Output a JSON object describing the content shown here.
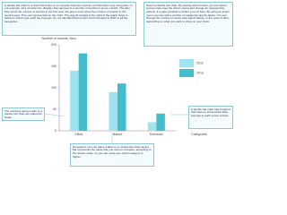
{
  "notes": {
    "intro": "A double bar chart is a chart that helps us to compare how two sources of information vary using bars. In our example, let's consider the diagram that represents a number of tourists in some months. The blue bars show the number of tourists in the first year, the green ones show the number of tourists in the second year. They are represented on the chart. The legend located to the right of the graph helps to define to which year each bar belongs. So, we identified that tourism had increased in 2012 in all the categories.",
    "howto": "Select a double bar chart. By placing action button you can add or remove bars (see the action menu) and change its representing options. It is also possible to define a set of bars. By using an action menu you can add a number of categories and its labels. You can change the number of series and legend labels, or the color of bars, depending on what you want to show on your chart.",
    "scale": "The numbers along a side of a double bar chart are called the Scale.",
    "legend": "A double bar chart has a legend that helps to show which data belongs to each series of bars.",
    "bottom": "Sometimes you can place a label on a double bar chart. Every bar represents the value that you want to compare, according to the double scale, so you can easily see which category is higher."
  },
  "chart_data": {
    "type": "bar",
    "y_label": "Number of tourists, thou.",
    "x_label": "Categories",
    "categories": [
      "Cities",
      "Nature",
      "Domestic"
    ],
    "series": [
      {
        "name": "2011",
        "color": "#9ee3ee",
        "values": [
          140,
          90,
          20
        ]
      },
      {
        "name": "2012",
        "color": "#45bccb",
        "values": [
          180,
          110,
          40
        ]
      }
    ],
    "ylim": [
      0,
      200
    ],
    "yticks": [
      0,
      50,
      100,
      150,
      200
    ]
  }
}
